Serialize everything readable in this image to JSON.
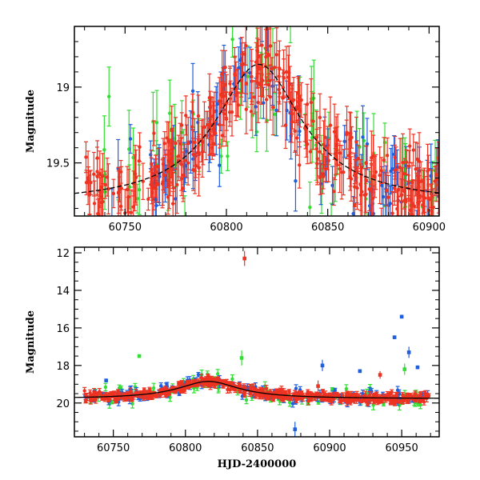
{
  "chart_data": [
    {
      "type": "scatter",
      "panel": "top",
      "title": "",
      "xlabel": "",
      "ylabel": "Magnitude",
      "xlim": [
        60725,
        60905
      ],
      "ylim": [
        19.85,
        18.6
      ],
      "y_inverted": true,
      "xticks": [
        60750,
        60800,
        60850,
        60900
      ],
      "xtick_labels": [
        "60750",
        "60800",
        "60850",
        "60900"
      ],
      "yticks": [
        19,
        19.5
      ],
      "ytick_labels": [
        "19",
        "19.5"
      ],
      "series": [
        {
          "name": "green",
          "color": "#33dd33",
          "description": "green filter photometry with error bars"
        },
        {
          "name": "blue",
          "color": "#1f5fdd",
          "description": "blue filter photometry with error bars"
        },
        {
          "name": "red",
          "color": "#ee3322",
          "description": "red filter photometry with error bars"
        }
      ],
      "model_curve": {
        "name": "model",
        "color": "#000000",
        "baseline_mag": 19.77,
        "peak_mag": 18.85,
        "peak_hjd": 60816,
        "width_days": 26
      }
    },
    {
      "type": "scatter",
      "panel": "bottom",
      "title": "",
      "xlabel": "HJD-2400000",
      "ylabel": "Magnitude",
      "xlim": [
        60723,
        60976
      ],
      "ylim": [
        21.8,
        11.7
      ],
      "y_inverted": true,
      "xticks": [
        60750,
        60800,
        60850,
        60900,
        60950
      ],
      "xtick_labels": [
        "60750",
        "60800",
        "60850",
        "60900",
        "60950"
      ],
      "yticks": [
        12,
        14,
        16,
        18,
        20
      ],
      "ytick_labels": [
        "12",
        "14",
        "16",
        "18",
        "20"
      ],
      "series": [
        {
          "name": "green",
          "color": "#33dd33"
        },
        {
          "name": "blue",
          "color": "#1f5fdd"
        },
        {
          "name": "red",
          "color": "#ee3322"
        }
      ],
      "model_curve": {
        "name": "model",
        "color": "#000000",
        "baseline_mag": 19.77,
        "peak_mag": 18.85,
        "peak_hjd": 60816,
        "width_days": 26
      },
      "outliers": [
        {
          "series": "red",
          "x": 60841,
          "y": 12.3,
          "err": 0.4
        },
        {
          "series": "green",
          "x": 60768,
          "y": 17.5,
          "err": 0.1
        },
        {
          "series": "green",
          "x": 60839,
          "y": 17.6,
          "err": 0.4
        },
        {
          "series": "blue",
          "x": 60895,
          "y": 18.0,
          "err": 0.3
        },
        {
          "series": "blue",
          "x": 60945,
          "y": 16.5,
          "err": 0.1
        },
        {
          "series": "blue",
          "x": 60950,
          "y": 15.4,
          "err": 0.1
        },
        {
          "series": "blue",
          "x": 60955,
          "y": 17.3,
          "err": 0.3
        },
        {
          "series": "blue",
          "x": 60961,
          "y": 18.1,
          "err": 0.1
        },
        {
          "series": "green",
          "x": 60952,
          "y": 18.2,
          "err": 0.3
        },
        {
          "series": "red",
          "x": 60935,
          "y": 18.5,
          "err": 0.2
        },
        {
          "series": "red",
          "x": 60892,
          "y": 19.1,
          "err": 0.3
        },
        {
          "series": "blue",
          "x": 60876,
          "y": 21.4,
          "err": 0.4
        },
        {
          "series": "blue",
          "x": 60921,
          "y": 18.3,
          "err": 0.1
        },
        {
          "series": "blue",
          "x": 60745,
          "y": 18.8,
          "err": 0.1
        }
      ]
    }
  ]
}
